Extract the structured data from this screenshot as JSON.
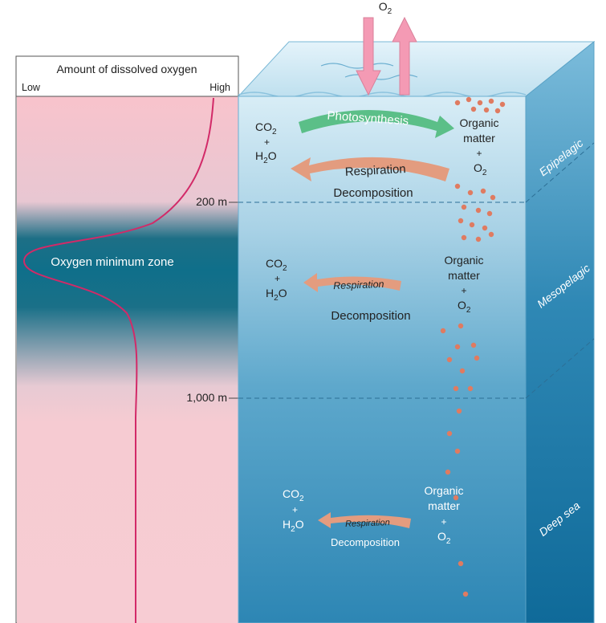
{
  "chart_title": "Amount of dissolved oxygen",
  "axis": {
    "low": "Low",
    "high": "High"
  },
  "depth_markers": {
    "d200": "200 m",
    "d1000": "1,000 m"
  },
  "oxygen_min_zone": "Oxygen minimum zone",
  "zones": {
    "epipelagic": "Epipelagic",
    "mesopelagic": "Mesopelagic",
    "deep": "Deep sea"
  },
  "processes": {
    "photosynthesis": "Photosynthesis",
    "respiration": "Respiration",
    "decomposition": "Decomposition"
  },
  "chem": {
    "o": "O",
    "co": "CO",
    "h": "H",
    "h2o_o": "O",
    "sub2": "2",
    "plus": "+",
    "organic": "Organic",
    "matter": "matter"
  },
  "colors": {
    "panel_pink": "#f6c9d0",
    "oxygen_band": "#0f6f8a",
    "curve": "#d22a68",
    "water_top": "#cfe6f1",
    "water_bottom": "#2d86b4",
    "side_face": "#1f7aa6",
    "photosynthesis_arrow": "#5bbf88",
    "respiration_arrow": "#e39c7f",
    "particle": "#df7b61",
    "o2_arrow": "#f49ab4"
  }
}
